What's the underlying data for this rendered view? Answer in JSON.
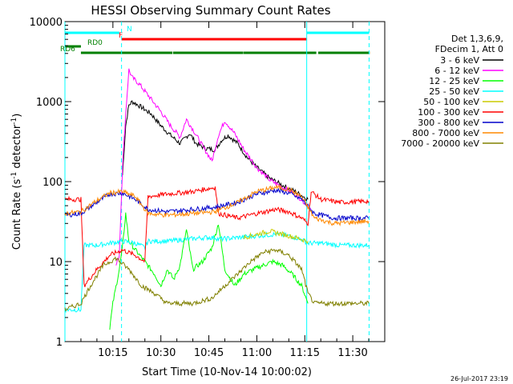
{
  "chart_data": {
    "type": "line",
    "title": "HESSI Observing Summary Count Rates",
    "xlabel": "Start Time (10-Nov-14 10:00:02)",
    "ylabel_main": "Count Rate (s",
    "ylabel_sup1": "-1",
    "ylabel_mid": " detector",
    "ylabel_sup2": "-1",
    "ylabel_end": ")",
    "y_scale": "log",
    "ylim": [
      1,
      10000
    ],
    "xlim_min": [
      0,
      100
    ],
    "x_ticks": [
      {
        "min": 15,
        "label": "10:15"
      },
      {
        "min": 30,
        "label": "10:30"
      },
      {
        "min": 45,
        "label": "10:45"
      },
      {
        "min": 60,
        "label": "11:00"
      },
      {
        "min": 75,
        "label": "11:15"
      },
      {
        "min": 90,
        "label": "11:30"
      }
    ],
    "y_ticks": [
      {
        "v": 1,
        "label": "1"
      },
      {
        "v": 10,
        "label": "10"
      },
      {
        "v": 100,
        "label": "100"
      },
      {
        "v": 1000,
        "label": "1000"
      },
      {
        "v": 10000,
        "label": "10000"
      }
    ],
    "legend_header": [
      "Det 1,3,6,9,",
      "FDecim 1, Att 0"
    ],
    "legend_placement": "right",
    "series": [
      {
        "name": "3 - 6 keV",
        "color": "#000000",
        "points": [
          [
            18,
            120
          ],
          [
            19,
            500
          ],
          [
            20,
            900
          ],
          [
            21,
            1000
          ],
          [
            23,
            900
          ],
          [
            27,
            700
          ],
          [
            30,
            500
          ],
          [
            33,
            380
          ],
          [
            36,
            300
          ],
          [
            39,
            400
          ],
          [
            41,
            300
          ],
          [
            44,
            260
          ],
          [
            47,
            250
          ],
          [
            49,
            330
          ],
          [
            51,
            380
          ],
          [
            54,
            300
          ],
          [
            57,
            200
          ],
          [
            60,
            150
          ],
          [
            64,
            110
          ],
          [
            68,
            90
          ],
          [
            72,
            75
          ],
          [
            76,
            60
          ]
        ]
      },
      {
        "name": "6 - 12 keV",
        "color": "#ff00ff",
        "points": [
          [
            16,
            9
          ],
          [
            17,
            12
          ],
          [
            18,
            150
          ],
          [
            19,
            700
          ],
          [
            20,
            2500
          ],
          [
            21,
            2000
          ],
          [
            23,
            1700
          ],
          [
            26,
            1200
          ],
          [
            30,
            750
          ],
          [
            33,
            500
          ],
          [
            36,
            360
          ],
          [
            38,
            600
          ],
          [
            40,
            450
          ],
          [
            43,
            280
          ],
          [
            46,
            180
          ],
          [
            48,
            380
          ],
          [
            50,
            580
          ],
          [
            53,
            400
          ],
          [
            56,
            250
          ],
          [
            60,
            150
          ],
          [
            64,
            105
          ],
          [
            68,
            85
          ],
          [
            72,
            70
          ],
          [
            75,
            55
          ],
          [
            77,
            45
          ]
        ]
      },
      {
        "name": "12 - 25 keV",
        "color": "#00ff00",
        "points": [
          [
            14,
            1.5
          ],
          [
            15,
            3
          ],
          [
            17,
            8
          ],
          [
            18,
            15
          ],
          [
            19,
            40
          ],
          [
            20,
            18
          ],
          [
            22,
            14
          ],
          [
            25,
            10
          ],
          [
            28,
            7
          ],
          [
            30,
            5
          ],
          [
            32,
            8
          ],
          [
            34,
            6
          ],
          [
            36,
            9
          ],
          [
            38,
            25
          ],
          [
            40,
            8
          ],
          [
            43,
            10
          ],
          [
            46,
            15
          ],
          [
            48,
            30
          ],
          [
            50,
            8
          ],
          [
            53,
            5
          ],
          [
            56,
            7
          ],
          [
            59,
            8
          ],
          [
            62,
            9
          ],
          [
            65,
            10
          ],
          [
            68,
            9
          ],
          [
            71,
            7
          ],
          [
            74,
            5
          ],
          [
            76,
            3
          ]
        ]
      },
      {
        "name": "25 - 50 keV",
        "color": "#00ffff",
        "points": [
          [
            0,
            2.5
          ],
          [
            5,
            2.5
          ],
          [
            6,
            16
          ],
          [
            10,
            16
          ],
          [
            14,
            17
          ],
          [
            18,
            18
          ],
          [
            22,
            17
          ],
          [
            25,
            15
          ],
          [
            26,
            18
          ],
          [
            32,
            18
          ],
          [
            38,
            19
          ],
          [
            44,
            20
          ],
          [
            47,
            20
          ],
          [
            48,
            19
          ],
          [
            54,
            20
          ],
          [
            60,
            21
          ],
          [
            66,
            22
          ],
          [
            70,
            21
          ],
          [
            74,
            19
          ],
          [
            76,
            17
          ],
          [
            80,
            17
          ],
          [
            86,
            16
          ],
          [
            95,
            16
          ]
        ]
      },
      {
        "name": "50 - 100 keV",
        "color": "#cccc00",
        "points": [
          [
            56,
            20
          ],
          [
            60,
            22
          ],
          [
            64,
            24
          ],
          [
            68,
            22
          ],
          [
            72,
            20
          ],
          [
            76,
            18
          ]
        ]
      },
      {
        "name": "100 - 300 keV",
        "color": "#ff0000",
        "points": [
          [
            0,
            60
          ],
          [
            5,
            60
          ],
          [
            6,
            5
          ],
          [
            10,
            8
          ],
          [
            14,
            12
          ],
          [
            18,
            14
          ],
          [
            22,
            12
          ],
          [
            25,
            10
          ],
          [
            26,
            65
          ],
          [
            32,
            70
          ],
          [
            40,
            75
          ],
          [
            47,
            85
          ],
          [
            48,
            40
          ],
          [
            54,
            35
          ],
          [
            60,
            40
          ],
          [
            66,
            45
          ],
          [
            70,
            42
          ],
          [
            74,
            35
          ],
          [
            76,
            30
          ],
          [
            77,
            75
          ],
          [
            80,
            60
          ],
          [
            86,
            55
          ],
          [
            95,
            57
          ]
        ]
      },
      {
        "name": "300 - 800 keV",
        "color": "#0000cc",
        "points": [
          [
            0,
            38
          ],
          [
            5,
            40
          ],
          [
            10,
            55
          ],
          [
            14,
            70
          ],
          [
            18,
            72
          ],
          [
            22,
            60
          ],
          [
            26,
            45
          ],
          [
            32,
            42
          ],
          [
            40,
            45
          ],
          [
            47,
            48
          ],
          [
            54,
            55
          ],
          [
            60,
            70
          ],
          [
            66,
            78
          ],
          [
            70,
            72
          ],
          [
            74,
            60
          ],
          [
            78,
            40
          ],
          [
            84,
            35
          ],
          [
            95,
            35
          ]
        ]
      },
      {
        "name": "800 - 7000 keV",
        "color": "#ff8800",
        "points": [
          [
            0,
            40
          ],
          [
            5,
            42
          ],
          [
            10,
            58
          ],
          [
            14,
            72
          ],
          [
            18,
            75
          ],
          [
            22,
            65
          ],
          [
            26,
            40
          ],
          [
            32,
            38
          ],
          [
            40,
            40
          ],
          [
            47,
            42
          ],
          [
            54,
            55
          ],
          [
            60,
            75
          ],
          [
            66,
            85
          ],
          [
            70,
            80
          ],
          [
            74,
            65
          ],
          [
            78,
            35
          ],
          [
            84,
            30
          ],
          [
            95,
            32
          ]
        ]
      },
      {
        "name": "7000 - 20000 keV",
        "color": "#808000",
        "points": [
          [
            0,
            2.5
          ],
          [
            5,
            3
          ],
          [
            8,
            5
          ],
          [
            12,
            9
          ],
          [
            16,
            11
          ],
          [
            20,
            8
          ],
          [
            24,
            5
          ],
          [
            28,
            4
          ],
          [
            32,
            3
          ],
          [
            40,
            3
          ],
          [
            46,
            3.5
          ],
          [
            50,
            5
          ],
          [
            54,
            7
          ],
          [
            58,
            10
          ],
          [
            62,
            13
          ],
          [
            66,
            14
          ],
          [
            70,
            12
          ],
          [
            74,
            8
          ],
          [
            76,
            4
          ],
          [
            78,
            3
          ],
          [
            86,
            3
          ],
          [
            95,
            3
          ]
        ]
      }
    ],
    "state_bars": {
      "N": {
        "label": "N",
        "color": "#00ffff",
        "segments": [
          [
            0,
            17
          ],
          [
            75.6,
            95.1
          ]
        ]
      },
      "F": {
        "label": "F",
        "color": "#ff0000",
        "segments": [
          [
            17.7,
            75.6
          ]
        ]
      },
      "RD0": {
        "label": "RD0",
        "color": "#008000",
        "segments": [
          [
            0,
            5
          ]
        ]
      },
      "RD6": {
        "label": "RD6",
        "color": "#008000",
        "segments": [
          [
            5,
            33.6
          ],
          [
            33.8,
            55.8
          ],
          [
            55.9,
            78.6
          ],
          [
            79.2,
            95.3
          ]
        ]
      }
    },
    "vlines_cyan_dashed": [
      17.7,
      95.1
    ],
    "vlines_cyan_solid": [
      0,
      75.6
    ]
  },
  "footer": {
    "timestamp": "26-Jul-2017 23:19"
  }
}
